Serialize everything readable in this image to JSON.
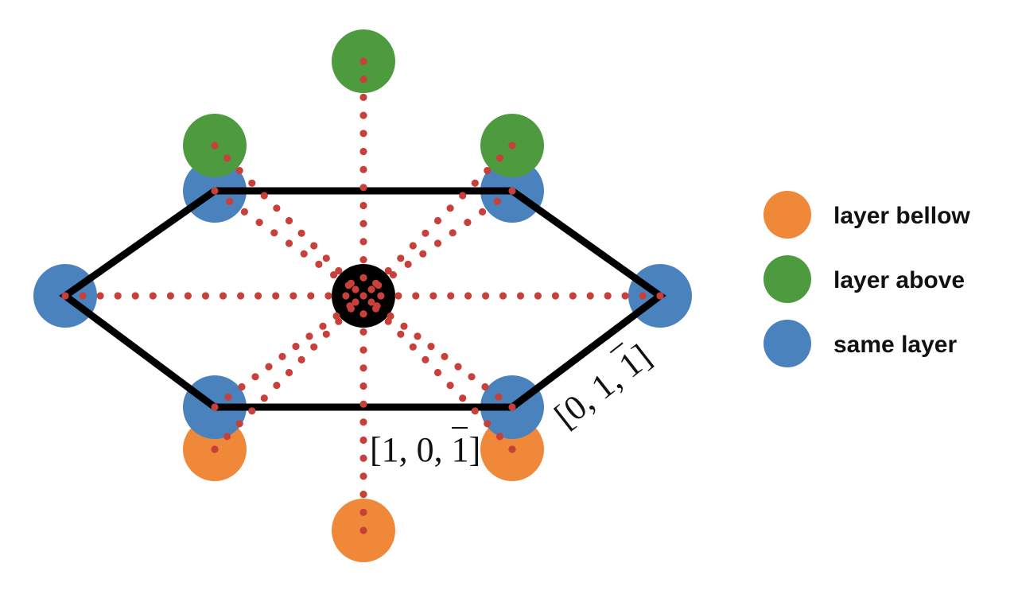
{
  "colors": {
    "below": "#F0883A",
    "above": "#4E9A3F",
    "same": "#4A82BE",
    "central": "#000000",
    "bond": "#C8403A",
    "outline": "#000000"
  },
  "legend": [
    {
      "key": "below",
      "label": "layer bellow"
    },
    {
      "key": "above",
      "label": "layer above"
    },
    {
      "key": "same",
      "label": "same layer"
    }
  ],
  "directions": {
    "d1": {
      "open": "[",
      "a": "1",
      "b": "0",
      "c": "1",
      "close": "]"
    },
    "d2": {
      "open": "[",
      "a": "0",
      "b": "1",
      "c": "1",
      "close": "]"
    }
  }
}
